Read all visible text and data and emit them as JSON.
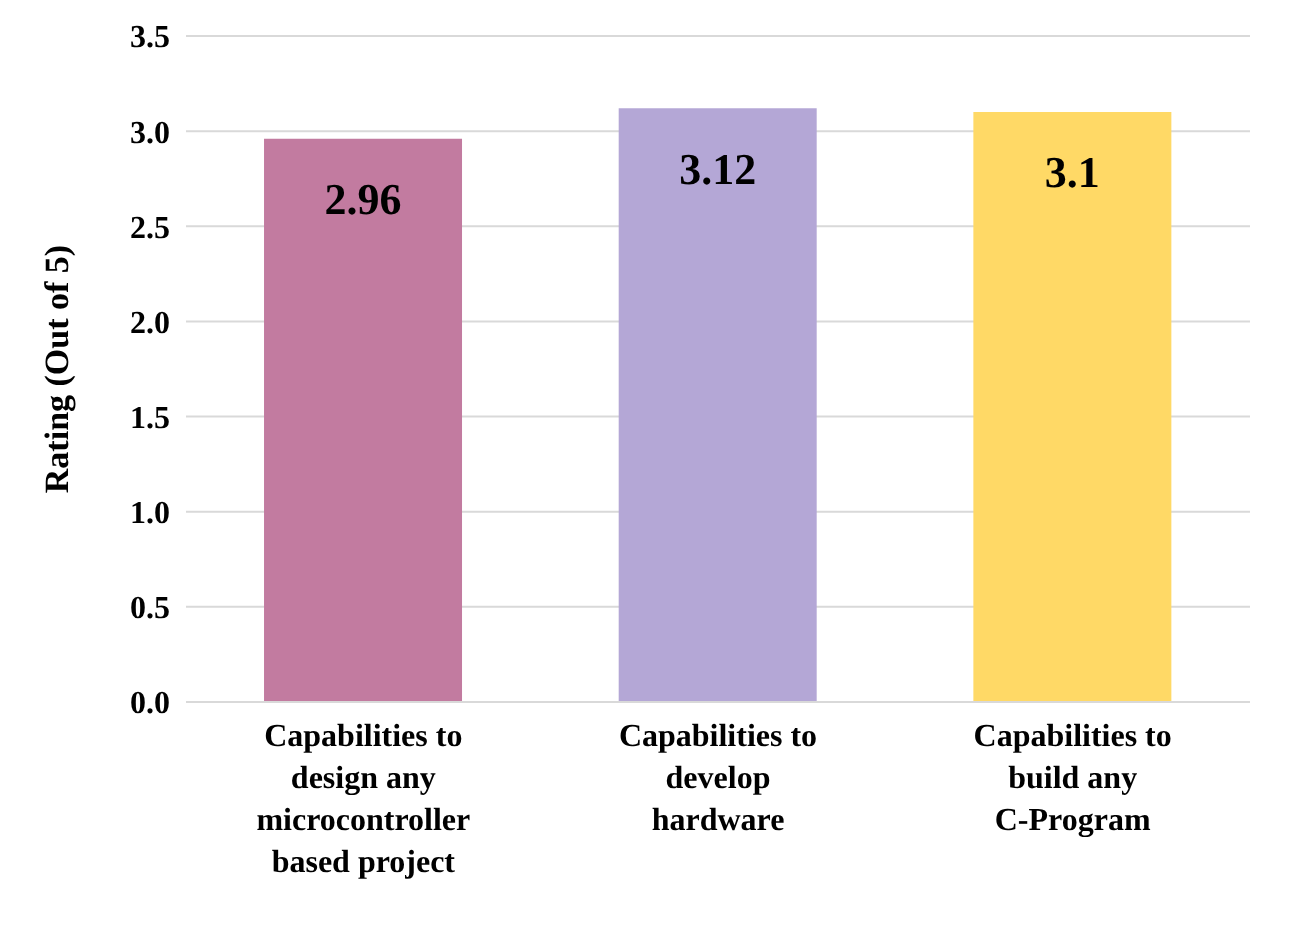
{
  "chart_data": {
    "type": "bar",
    "ylabel": "Rating (Out of 5)",
    "categories": [
      "Capabilities to design any microcontroller based project",
      "Capabilities to develop hardware",
      "Capabilities to build any C-Program"
    ],
    "values": [
      2.96,
      3.12,
      3.1
    ],
    "colors": [
      "#c27ba0",
      "#b4a7d6",
      "#ffd966"
    ],
    "ylim": [
      0,
      3.5
    ],
    "yticks": [
      {
        "value": 0,
        "label": "0.0"
      },
      0.5,
      {
        "value": 1,
        "label": "1.0"
      },
      1.5,
      {
        "value": 2,
        "label": "2.0"
      },
      2.5,
      {
        "value": 3,
        "label": "3.0"
      },
      3.5
    ],
    "grid": "y",
    "data_labels": true
  }
}
